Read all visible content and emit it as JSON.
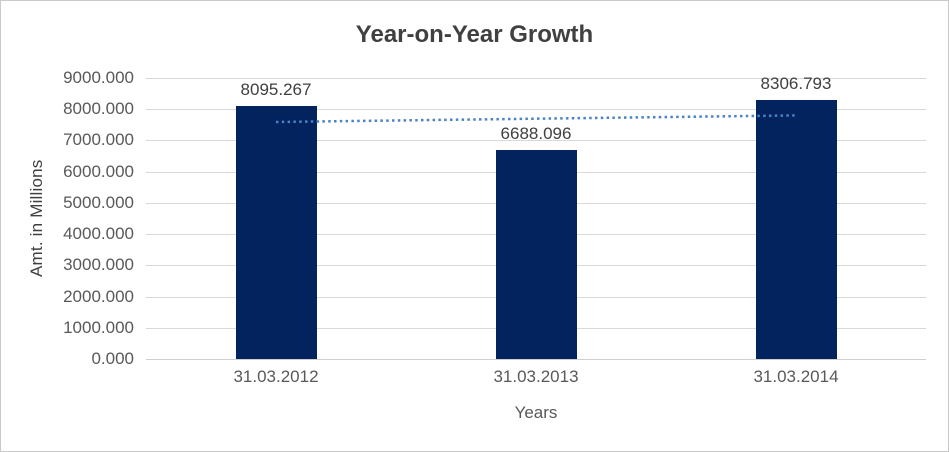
{
  "chart_data": {
    "type": "bar",
    "title": "Year-on-Year Growth",
    "xlabel": "Years",
    "ylabel": "Amt. in Millions",
    "categories": [
      "31.03.2012",
      "31.03.2013",
      "31.03.2014"
    ],
    "values": [
      8095.267,
      6688.096,
      8306.793
    ],
    "data_labels": [
      "8095.267",
      "6688.096",
      "8306.793"
    ],
    "ylim": [
      0,
      9000
    ],
    "ytick_step": 1000,
    "ytick_labels": [
      "9000.000",
      "8000.000",
      "7000.000",
      "6000.000",
      "5000.000",
      "4000.000",
      "3000.000",
      "2000.000",
      "1000.000",
      "0.000"
    ],
    "grid": true,
    "legend": "none",
    "trendline": {
      "kind": "linear",
      "line_style": "dotted",
      "start_value": 7591,
      "end_value": 7802
    }
  },
  "colors": {
    "bar_fill": "#02235e",
    "trendline": "#4a82c4",
    "gridline": "#d9d9d9",
    "axis_line": "#cfcfcf",
    "title_text": "#404040",
    "data_label_text": "#404040",
    "tick_text": "#595959",
    "frame_border": "#c9c9c9"
  }
}
